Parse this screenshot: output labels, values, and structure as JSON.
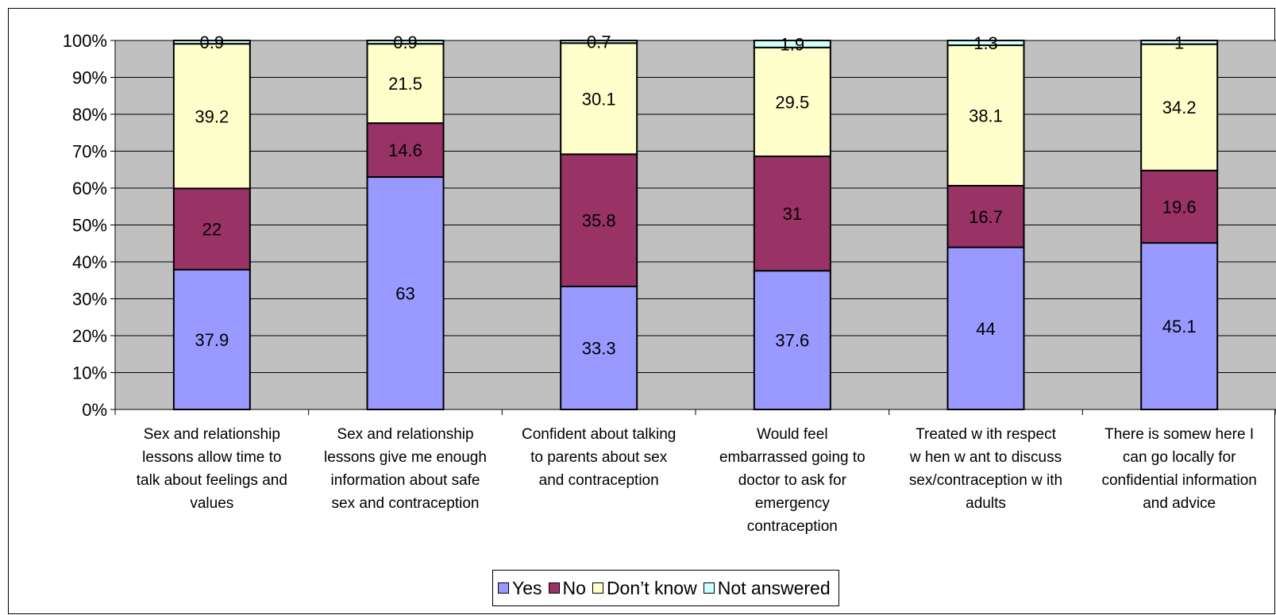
{
  "chart_data": {
    "type": "bar",
    "stacked": true,
    "percent": true,
    "categories": [
      [
        "Sex and relationship",
        "lessons allow  time to",
        "talk about feelings and",
        "values"
      ],
      [
        "Sex and relationship",
        "lessons give me enough",
        "information about safe",
        "sex and contraception"
      ],
      [
        "Confident about talking",
        "to parents about sex",
        "and contraception"
      ],
      [
        "Would feel",
        "embarrassed going to",
        "doctor to ask for",
        "emergency",
        "contraception"
      ],
      [
        "Treated w ith respect",
        "w hen w ant to discuss",
        "sex/contraception w ith",
        "adults"
      ],
      [
        "There is somew here I",
        "can go locally for",
        "confidential information",
        "and advice"
      ]
    ],
    "series": [
      {
        "name": "Yes",
        "color": "#9999ff",
        "values": [
          37.9,
          63,
          33.3,
          37.6,
          44,
          45.1
        ]
      },
      {
        "name": "No",
        "color": "#993366",
        "values": [
          22,
          14.6,
          35.8,
          31,
          16.7,
          19.6
        ]
      },
      {
        "name": "Don’t know",
        "color": "#ffffcc",
        "values": [
          39.2,
          21.5,
          30.1,
          29.5,
          38.1,
          34.2
        ]
      },
      {
        "name": "Not answered",
        "color": "#ccffff",
        "values": [
          0.9,
          0.9,
          0.7,
          1.9,
          1.3,
          1
        ]
      }
    ],
    "data_labels": [
      [
        "37.9",
        "63",
        "33.3",
        "37.6",
        "44",
        "45.1"
      ],
      [
        "22",
        "14.6",
        "35.8",
        "31",
        "16.7",
        "19.6"
      ],
      [
        "39.2",
        "21.5",
        "30.1",
        "29.5",
        "38.1",
        "34.2"
      ],
      [
        "0.9",
        "0.9",
        "0.7",
        "1.9",
        "1.3",
        "1"
      ]
    ],
    "y_ticks": [
      "0%",
      "10%",
      "20%",
      "30%",
      "40%",
      "50%",
      "60%",
      "70%",
      "80%",
      "90%",
      "100%"
    ],
    "ylim": [
      0,
      100
    ],
    "grid": true,
    "plot_background": "#c0c0c0",
    "legend_position": "bottom",
    "title": "",
    "xlabel": "",
    "ylabel": ""
  }
}
